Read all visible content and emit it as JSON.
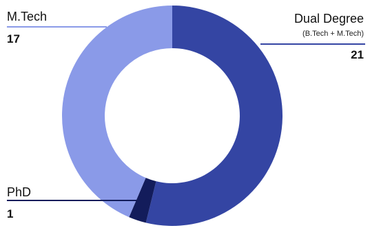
{
  "chart_data": {
    "type": "pie",
    "variant": "donut",
    "slices": [
      {
        "label": "Dual Degree",
        "sublabel": "(B.Tech + M.Tech)",
        "value": 21,
        "display": "21",
        "color": "#3445a3"
      },
      {
        "label": "PhD",
        "value": 1,
        "display": "1",
        "color": "#131c5b"
      },
      {
        "label": "M.Tech",
        "value": 17,
        "display": "17",
        "color": "#8a9ae8"
      }
    ],
    "legend": "none",
    "labels": "outside-with-leader-lines"
  }
}
